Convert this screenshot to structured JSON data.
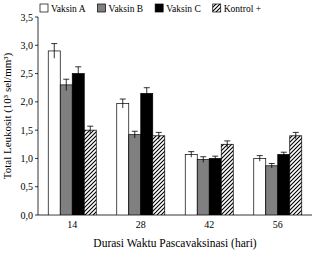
{
  "chart_data": {
    "type": "bar",
    "y_label": "Total Leukosit (10³ sel/mm³)",
    "x_label": "Durasi Waktu Pascavaksinasi (hari)",
    "categories": [
      "14",
      "28",
      "42",
      "56"
    ],
    "series": [
      {
        "name": "Vaksin A",
        "color": "#ffffff",
        "values": [
          2.9,
          1.97,
          1.07,
          1.0
        ],
        "errors": [
          0.13,
          0.08,
          0.05,
          0.05
        ]
      },
      {
        "name": "Vaksin B",
        "color": "#808080",
        "values": [
          2.3,
          1.42,
          0.98,
          0.87
        ],
        "errors": [
          0.1,
          0.06,
          0.05,
          0.04
        ]
      },
      {
        "name": "Vaksin C",
        "color": "#000000",
        "values": [
          2.5,
          2.15,
          1.0,
          1.07
        ],
        "errors": [
          0.12,
          0.1,
          0.04,
          0.04
        ]
      },
      {
        "name": "Kontrol +",
        "color": "#000000",
        "line_style": "hatched",
        "values": [
          1.5,
          1.4,
          1.25,
          1.4
        ],
        "errors": [
          0.07,
          0.06,
          0.06,
          0.06
        ]
      }
    ],
    "ylim": [
      0,
      3.5
    ],
    "yticks": [
      {
        "value": 0,
        "label": "0,0"
      },
      {
        "value": 0.5,
        "label": "0,5"
      },
      {
        "value": 1,
        "label": "1,0"
      },
      {
        "value": 1.5,
        "label": "1,5"
      },
      {
        "value": 2,
        "label": "2,0"
      },
      {
        "value": 2.5,
        "label": "2,5"
      },
      {
        "value": 3,
        "label": "3,0"
      },
      {
        "value": 3.5,
        "label": "3,5"
      }
    ],
    "legend": "top",
    "grid": false
  }
}
